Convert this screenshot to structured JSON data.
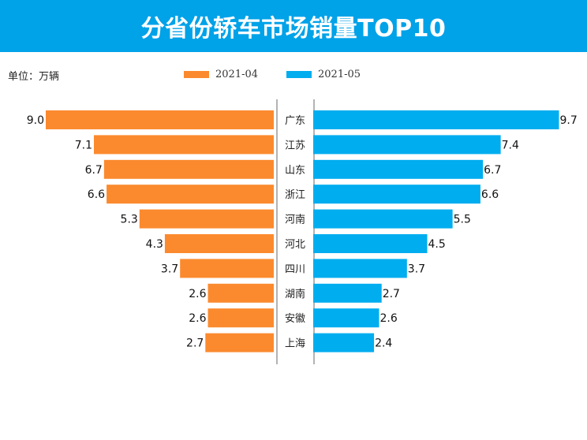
{
  "title": "分省份轿车市场销量TOP10",
  "unit": "单位：万辆",
  "colors": {
    "header": "#00a2e8",
    "left": "#fb8a2e",
    "right": "#00adef"
  },
  "chart_data": {
    "type": "bar",
    "layout": "butterfly",
    "title": "分省份轿车市场销量TOP10",
    "unit": "单位：万辆",
    "categories": [
      "广东",
      "江苏",
      "山东",
      "浙江",
      "河南",
      "河北",
      "四川",
      "湖南",
      "安徽",
      "上海"
    ],
    "series": [
      {
        "name": "2021-04",
        "values": [
          "9.0",
          "7.1",
          "6.7",
          "6.6",
          "5.3",
          "4.3",
          "3.7",
          "2.6",
          "2.6",
          "2.7"
        ]
      },
      {
        "name": "2021-05",
        "values": [
          "9.7",
          "7.4",
          "6.7",
          "6.6",
          "5.5",
          "4.5",
          "3.7",
          "2.7",
          "2.6",
          "2.4"
        ]
      }
    ],
    "legend_position": "top-center"
  }
}
